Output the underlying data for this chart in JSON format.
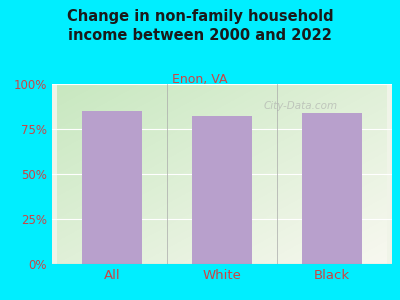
{
  "title": "Change in non-family household\nincome between 2000 and 2022",
  "subtitle": "Enon, VA",
  "categories": [
    "All",
    "White",
    "Black"
  ],
  "values": [
    85,
    82,
    84
  ],
  "bar_color": "#b8a0cc",
  "title_color": "#1a1a1a",
  "subtitle_color": "#cc4444",
  "tick_color": "#cc4444",
  "background_outer": "#00eeff",
  "ylim": [
    0,
    100
  ],
  "yticks": [
    0,
    25,
    50,
    75,
    100
  ],
  "ytick_labels": [
    "0%",
    "25%",
    "50%",
    "75%",
    "100%"
  ],
  "watermark": "City-Data.com",
  "bar_width": 0.55,
  "plot_bg_color_top_left": "#c8e8c0",
  "plot_bg_color_bottom_right": "#f0f4e8"
}
